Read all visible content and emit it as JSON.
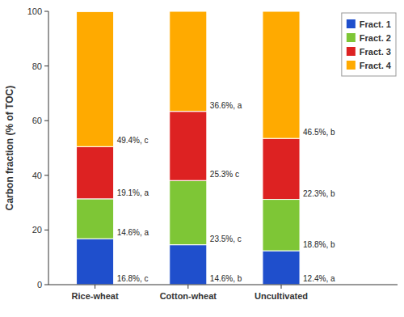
{
  "chart_data": {
    "type": "bar",
    "stacked": true,
    "categories": [
      "Rice-wheat",
      "Cotton-wheat",
      "Uncultivated"
    ],
    "series": [
      {
        "name": "Fract. 1",
        "color": "#1f4fcc",
        "values": [
          16.8,
          14.6,
          12.4
        ],
        "value_labels": [
          "16.8%, c",
          "14.6%, b",
          "12.4%, a"
        ]
      },
      {
        "name": "Fract. 2",
        "color": "#7ec636",
        "values": [
          14.6,
          23.5,
          18.8
        ],
        "value_labels": [
          "14.6%, a",
          "23.5%, c",
          "18.8%, b"
        ]
      },
      {
        "name": "Fract. 3",
        "color": "#dd2222",
        "values": [
          19.1,
          25.3,
          22.3
        ],
        "value_labels": [
          "19.1%, a",
          "25.3% c",
          "22.3%, b"
        ]
      },
      {
        "name": "Fract. 4",
        "color": "#ffaa00",
        "values": [
          49.4,
          36.6,
          46.5
        ],
        "value_labels": [
          "49.4%, c",
          "36.6%, a",
          "46.5%, b"
        ]
      }
    ],
    "ylabel": "Carbon fraction (% of TOC)",
    "ylim": [
      0,
      100
    ],
    "yticks": [
      0,
      20,
      40,
      60,
      80,
      100
    ],
    "data_labels": true,
    "grid": false,
    "legend": "upper right"
  }
}
